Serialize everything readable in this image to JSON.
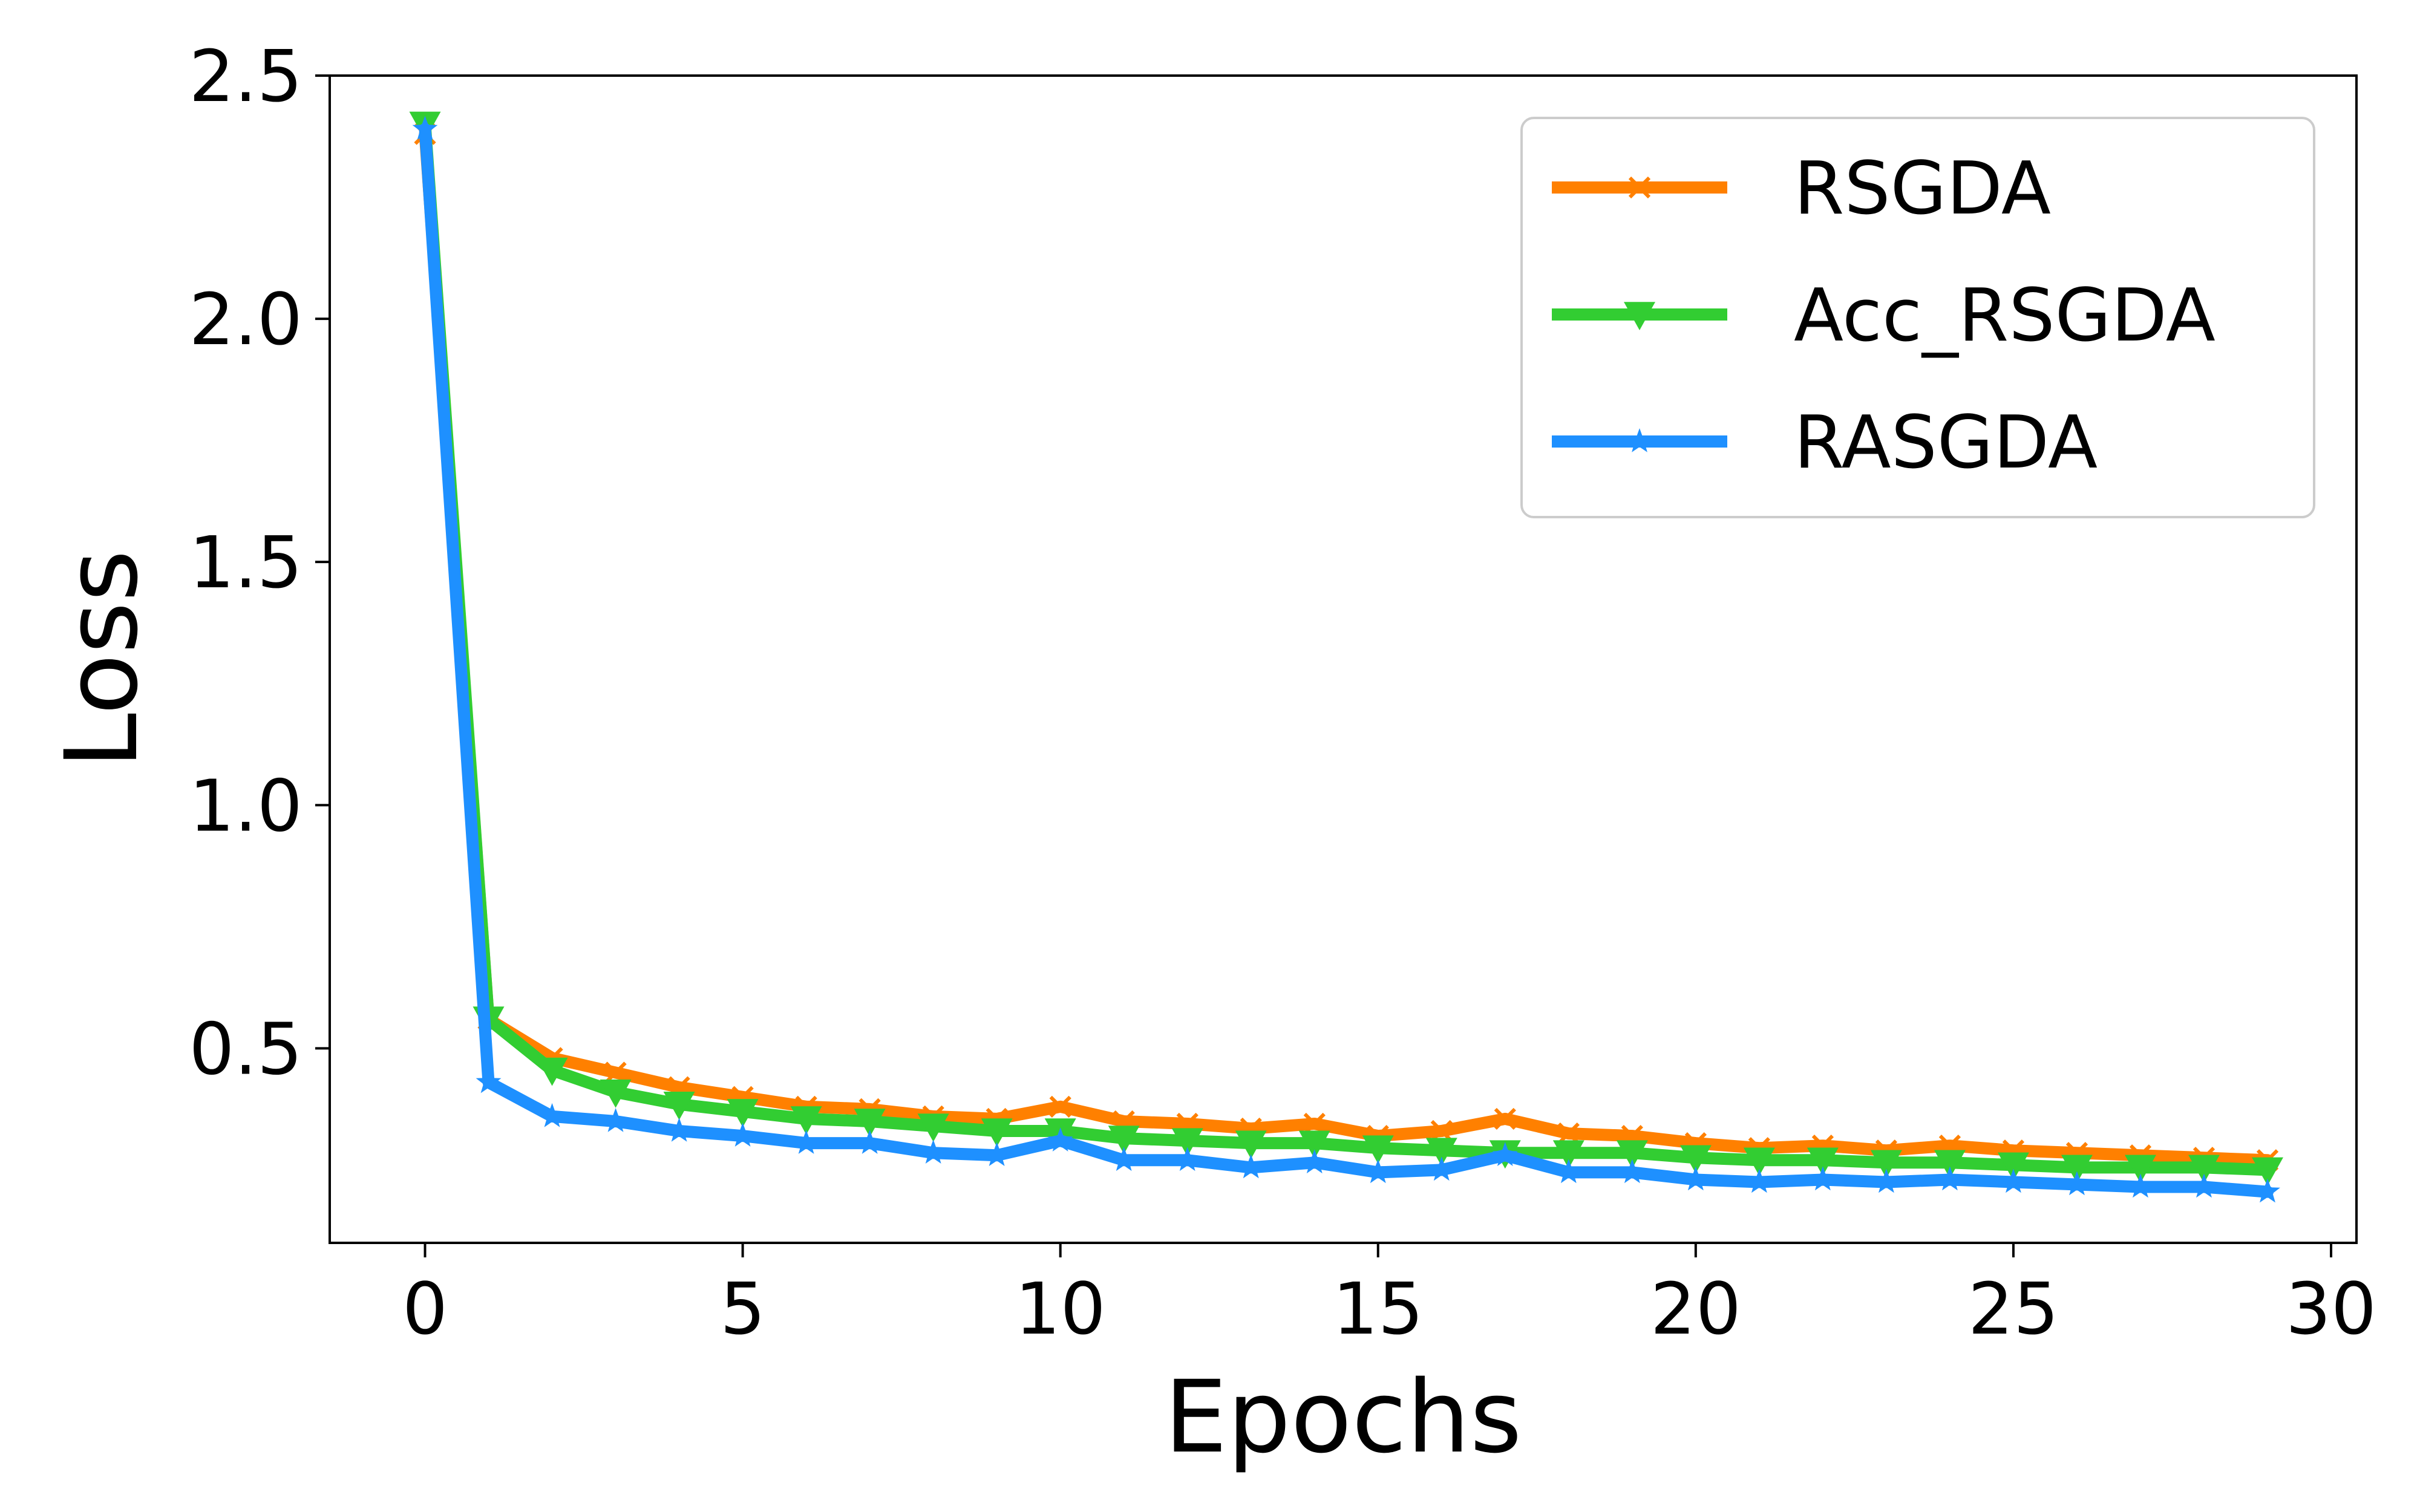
{
  "chart_data": {
    "type": "line",
    "title": "",
    "xlabel": "Epochs",
    "ylabel": "Loss",
    "xlim": [
      -1.5,
      30.4
    ],
    "ylim": [
      0.1,
      2.5
    ],
    "xticks": [
      0,
      5,
      10,
      15,
      20,
      25,
      30
    ],
    "xtick_labels": [
      "0",
      "5",
      "10",
      "15",
      "20",
      "25",
      "30"
    ],
    "yticks": [
      0.5,
      1.0,
      1.5,
      2.0,
      2.5
    ],
    "ytick_labels": [
      "0.5",
      "1.0",
      "1.5",
      "2.0",
      "2.5"
    ],
    "grid": false,
    "legend_position": "top-right",
    "x": [
      0,
      1,
      2,
      3,
      4,
      5,
      6,
      7,
      8,
      9,
      10,
      11,
      12,
      13,
      14,
      15,
      16,
      17,
      18,
      19,
      20,
      21,
      22,
      23,
      24,
      25,
      26,
      27,
      28,
      29
    ],
    "series": [
      {
        "name": "RSGDA",
        "color": "#ff8000",
        "marker": "x",
        "values": [
          2.38,
          0.56,
          0.48,
          0.45,
          0.42,
          0.4,
          0.38,
          0.375,
          0.36,
          0.355,
          0.38,
          0.35,
          0.345,
          0.335,
          0.345,
          0.32,
          0.33,
          0.355,
          0.325,
          0.32,
          0.305,
          0.295,
          0.3,
          0.29,
          0.3,
          0.29,
          0.285,
          0.28,
          0.275,
          0.27
        ]
      },
      {
        "name": "Acc_RSGDA",
        "color": "#32cd32",
        "marker": "triangle-down",
        "values": [
          2.4,
          0.56,
          0.455,
          0.41,
          0.385,
          0.37,
          0.355,
          0.35,
          0.34,
          0.33,
          0.33,
          0.315,
          0.31,
          0.305,
          0.305,
          0.295,
          0.29,
          0.285,
          0.285,
          0.285,
          0.275,
          0.27,
          0.27,
          0.265,
          0.265,
          0.26,
          0.255,
          0.255,
          0.255,
          0.25
        ]
      },
      {
        "name": "RASGDA",
        "color": "#1e90ff",
        "marker": "star",
        "values": [
          2.39,
          0.43,
          0.36,
          0.35,
          0.33,
          0.32,
          0.305,
          0.305,
          0.285,
          0.28,
          0.31,
          0.27,
          0.27,
          0.255,
          0.265,
          0.245,
          0.25,
          0.28,
          0.245,
          0.245,
          0.23,
          0.225,
          0.23,
          0.225,
          0.23,
          0.225,
          0.22,
          0.215,
          0.215,
          0.205
        ]
      }
    ]
  }
}
